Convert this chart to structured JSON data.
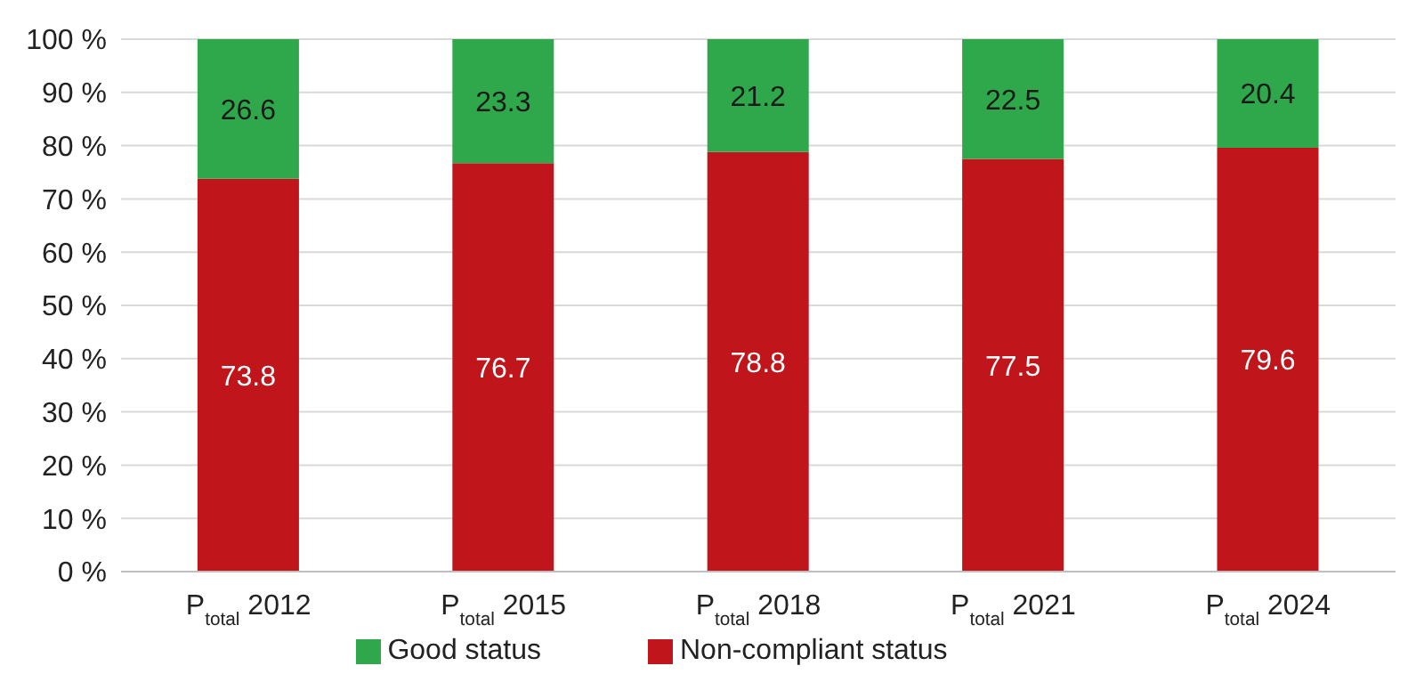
{
  "chart_data": {
    "type": "bar",
    "stacked": true,
    "categories": [
      "P$_{total}$ 2012",
      "P$_{total}$ 2015",
      "P$_{total}$ 2018",
      "P$_{total}$ 2021",
      "P$_{total}$ 2024"
    ],
    "series": [
      {
        "name": "Non-compliant status",
        "color": "#c0161b",
        "values": [
          73.8,
          76.7,
          78.8,
          77.5,
          79.6
        ]
      },
      {
        "name": "Good status",
        "color": "#2ea84a",
        "values": [
          26.6,
          23.3,
          21.2,
          22.5,
          20.4
        ]
      }
    ],
    "ylim": [
      0,
      100
    ],
    "yticks": [
      {
        "value": 0,
        "label": "0 %"
      },
      {
        "value": 10,
        "label": "10 %"
      },
      {
        "value": 20,
        "label": "20 %"
      },
      {
        "value": 30,
        "label": "30 %"
      },
      {
        "value": 40,
        "label": "40 %"
      },
      {
        "value": 50,
        "label": "50 %"
      },
      {
        "value": 60,
        "label": "60 %"
      },
      {
        "value": 70,
        "label": "70 %"
      },
      {
        "value": 80,
        "label": "80 %"
      },
      {
        "value": 90,
        "label": "90 %"
      },
      {
        "value": 100,
        "label": "100 %"
      }
    ],
    "grid": "y",
    "legend": "bottom",
    "data_labels": true
  }
}
